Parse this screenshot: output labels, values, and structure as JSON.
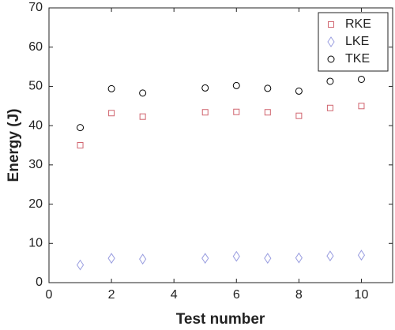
{
  "chart_data": {
    "type": "scatter",
    "xlabel": "Test number",
    "ylabel": "Energy (J)",
    "x": [
      1,
      2,
      3,
      5,
      6,
      7,
      8,
      9,
      10
    ],
    "series": [
      {
        "name": "RKE",
        "color": "#d0646e",
        "marker": "square",
        "values": [
          35,
          43.2,
          42.3,
          43.4,
          43.5,
          43.4,
          42.5,
          44.5,
          45
        ]
      },
      {
        "name": "LKE",
        "color": "#9a9ee0",
        "marker": "diamond",
        "values": [
          4.5,
          6.2,
          6,
          6.2,
          6.7,
          6.2,
          6.3,
          6.8,
          7
        ]
      },
      {
        "name": "TKE",
        "color": "#000000",
        "marker": "circle",
        "values": [
          39.5,
          49.4,
          48.3,
          49.6,
          50.2,
          49.5,
          48.8,
          51.3,
          51.8
        ]
      }
    ],
    "xlim": [
      0,
      11
    ],
    "xticks": [
      0,
      2,
      4,
      6,
      8,
      10
    ],
    "ylim": [
      0,
      70
    ],
    "yticks": [
      0,
      10,
      20,
      30,
      40,
      50,
      60,
      70
    ],
    "grid": false,
    "legend": "northeast"
  }
}
